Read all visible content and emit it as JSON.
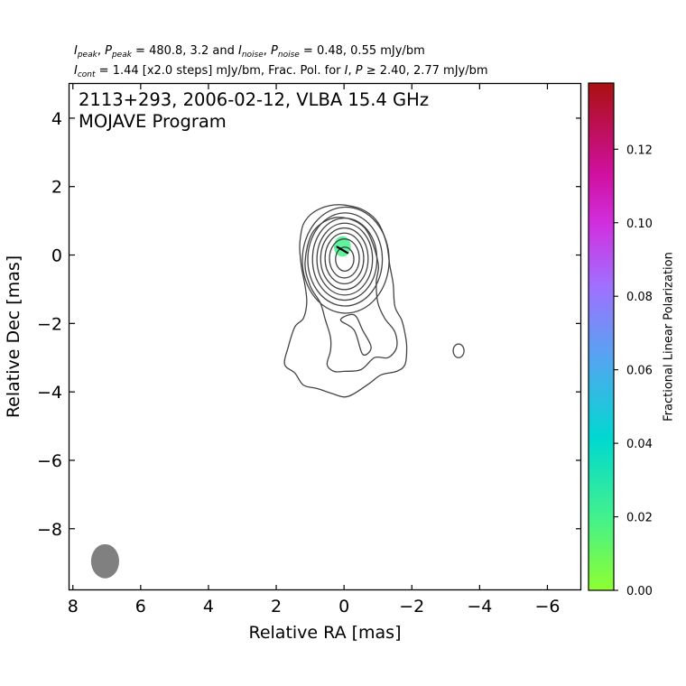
{
  "header": {
    "line1": {
      "i_sym": "I",
      "i_sub": "peak",
      "p_sym": "P",
      "p_sub": "peak",
      "eq1": " = 480.8, 3.2 and ",
      "i2_sym": "I",
      "i2_sub": "noise",
      "p2_sym": "P",
      "p2_sub": "noise",
      "eq2": " = 0.48, 0.55 mJy/bm"
    },
    "line2": {
      "i_sym": "I",
      "i_sub": "cont",
      "text1": " = 1.44 [x2.0 steps] mJy/bm, Frac. Pol. for ",
      "i_sym2": "I",
      "p_sym2": "P",
      "text2": " ≥ 2.40, 2.77 mJy/bm"
    }
  },
  "plot_title": {
    "line1": "2113+293, 2006-02-12, VLBA 15.4 GHz",
    "line2": "MOJAVE Program"
  },
  "chart_data": {
    "type": "contour",
    "source": "2113+293",
    "date": "2006-02-12",
    "instrument": "VLBA 15.4 GHz",
    "program": "MOJAVE Program",
    "xlabel": "Relative RA [mas]",
    "ylabel": "Relative Dec [mas]",
    "xlim": [
      8.1,
      -7.0
    ],
    "ylim": [
      -9.8,
      5.0
    ],
    "x_ticks": [
      8,
      6,
      4,
      2,
      0,
      -2,
      -4,
      -6
    ],
    "y_ticks": [
      4,
      2,
      0,
      -2,
      -4,
      -6,
      -8
    ],
    "x_tick_labels": [
      "8",
      "6",
      "4",
      "2",
      "0",
      "−2",
      "−4",
      "−6"
    ],
    "y_tick_labels": [
      "4",
      "2",
      "0",
      "−2",
      "−4",
      "−6",
      "−8"
    ],
    "peak_intensity_mJy_per_beam": 480.8,
    "peak_polarized_intensity_mJy_per_beam": 3.2,
    "noise_intensity_mJy_per_beam": 0.48,
    "noise_polarized_mJy_per_beam": 0.55,
    "lowest_contour_mJy_per_beam": 1.44,
    "contour_step_factor": 2.0,
    "frac_pol_cutoff_I_mJy_per_beam": 2.4,
    "frac_pol_cutoff_P_mJy_per_beam": 2.77,
    "core_contours": [
      {
        "cx": -0.05,
        "cy": -0.15,
        "rx": 1.28,
        "ry": 1.55
      },
      {
        "cx": -0.03,
        "cy": -0.13,
        "rx": 1.1,
        "ry": 1.36
      },
      {
        "cx": -0.02,
        "cy": -0.12,
        "rx": 0.95,
        "ry": 1.2
      },
      {
        "cx": -0.02,
        "cy": -0.12,
        "rx": 0.82,
        "ry": 1.05
      },
      {
        "cx": -0.01,
        "cy": -0.11,
        "rx": 0.7,
        "ry": 0.9
      },
      {
        "cx": -0.01,
        "cy": -0.1,
        "rx": 0.57,
        "ry": 0.74
      },
      {
        "cx": -0.01,
        "cy": -0.1,
        "rx": 0.44,
        "ry": 0.57
      },
      {
        "cx": -0.02,
        "cy": -0.12,
        "rx": 0.27,
        "ry": 0.35
      }
    ],
    "outer_contours": [
      {
        "name": "lowest-contour",
        "points": [
          [
            1.3,
            0.4
          ],
          [
            1.2,
            0.9
          ],
          [
            0.9,
            1.25
          ],
          [
            0.4,
            1.45
          ],
          [
            -0.1,
            1.45
          ],
          [
            -0.6,
            1.3
          ],
          [
            -1.0,
            0.95
          ],
          [
            -1.25,
            0.35
          ],
          [
            -1.35,
            -0.3
          ],
          [
            -1.45,
            -0.85
          ],
          [
            -1.5,
            -1.5
          ],
          [
            -1.7,
            -1.9
          ],
          [
            -1.8,
            -2.3
          ],
          [
            -1.85,
            -2.7
          ],
          [
            -1.8,
            -3.2
          ],
          [
            -1.55,
            -3.4
          ],
          [
            -1.1,
            -3.5
          ],
          [
            -0.75,
            -3.75
          ],
          [
            -0.3,
            -4.05
          ],
          [
            0.0,
            -4.15
          ],
          [
            0.35,
            -4.05
          ],
          [
            0.8,
            -3.9
          ],
          [
            1.2,
            -3.8
          ],
          [
            1.45,
            -3.45
          ],
          [
            1.75,
            -3.2
          ],
          [
            1.65,
            -2.7
          ],
          [
            1.45,
            -2.1
          ],
          [
            1.2,
            -1.85
          ],
          [
            1.1,
            -1.4
          ],
          [
            1.15,
            -0.9
          ],
          [
            1.25,
            -0.4
          ],
          [
            1.3,
            0.05
          ]
        ]
      },
      {
        "name": "second-contour",
        "points": [
          [
            1.15,
            -0.2
          ],
          [
            1.0,
            -0.9
          ],
          [
            0.7,
            -1.4
          ],
          [
            0.55,
            -1.9
          ],
          [
            0.4,
            -2.4
          ],
          [
            0.4,
            -2.8
          ],
          [
            0.5,
            -3.2
          ],
          [
            0.3,
            -3.4
          ],
          [
            0.0,
            -3.4
          ],
          [
            -0.5,
            -3.35
          ],
          [
            -0.9,
            -3.0
          ],
          [
            -1.3,
            -3.0
          ],
          [
            -1.55,
            -2.7
          ],
          [
            -1.5,
            -2.25
          ],
          [
            -1.2,
            -1.85
          ],
          [
            -1.0,
            -1.4
          ],
          [
            -0.95,
            -0.8
          ],
          [
            -1.0,
            -0.2
          ],
          [
            -0.6,
            0.8
          ],
          [
            0.2,
            1.1
          ],
          [
            0.9,
            0.7
          ]
        ]
      },
      {
        "name": "tail-gap",
        "points": [
          [
            0.1,
            -1.9
          ],
          [
            -0.3,
            -2.2
          ],
          [
            -0.55,
            -2.9
          ],
          [
            -0.8,
            -2.7
          ],
          [
            -0.55,
            -2.2
          ],
          [
            -0.3,
            -1.75
          ]
        ]
      }
    ],
    "isolated_contours": [
      {
        "cx": -3.38,
        "cy": -2.8,
        "rx": 0.16,
        "ry": 0.2
      }
    ],
    "polarization": {
      "patch_center": [
        0.05,
        0.25
      ],
      "patch_radius_x": 0.25,
      "patch_radius_y": 0.3,
      "frac_pol_value": 0.02,
      "evpa_vectors": [
        {
          "x": 0.05,
          "y": 0.15,
          "angle_deg": 30,
          "length": 0.35
        }
      ]
    },
    "beam": {
      "x": 7.05,
      "y": -8.95,
      "major_mas": 1.0,
      "minor_mas": 0.83,
      "color": "#808080"
    },
    "contour_color": "#444444",
    "colorbar": {
      "label": "Fractional Linear Polarization",
      "min": 0.0,
      "max": 0.138,
      "ticks": [
        0.0,
        0.02,
        0.04,
        0.06,
        0.08,
        0.1,
        0.12
      ],
      "tick_labels": [
        "0.00",
        "0.02",
        "0.04",
        "0.06",
        "0.08",
        "0.10",
        "0.12"
      ],
      "colormap": [
        [
          0.0,
          "#8fff30"
        ],
        [
          0.15,
          "#40f090"
        ],
        [
          0.3,
          "#00d8d0"
        ],
        [
          0.45,
          "#50a8f0"
        ],
        [
          0.6,
          "#a070ff"
        ],
        [
          0.72,
          "#d030e0"
        ],
        [
          0.82,
          "#d010a0"
        ],
        [
          1.0,
          "#aa1010"
        ]
      ]
    }
  }
}
